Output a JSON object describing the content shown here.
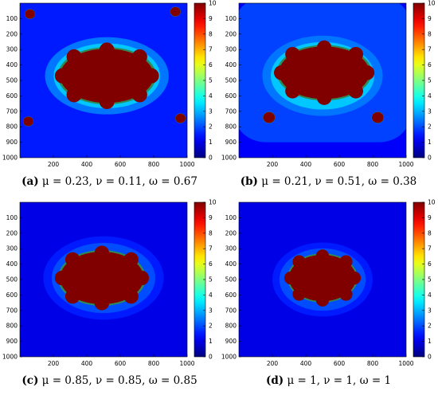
{
  "chart_data": [
    {
      "type": "heatmap",
      "panel_letter": "(a)",
      "caption_text": "μ = 0.23, ν = 0.11, ω = 0.67",
      "x_ticks": [
        "200",
        "400",
        "600",
        "800",
        "1000"
      ],
      "y_ticks": [
        "100",
        "200",
        "300",
        "400",
        "500",
        "600",
        "700",
        "800",
        "900",
        "1000"
      ],
      "xlim": [
        0,
        1000
      ],
      "ylim": [
        0,
        1000
      ],
      "colorbar": {
        "ticks": [
          "0",
          "1",
          "2",
          "3",
          "4",
          "5",
          "6",
          "7",
          "8",
          "9",
          "10"
        ],
        "range": [
          0,
          10
        ]
      },
      "background_value": 1.5,
      "regions": [
        {
          "kind": "halo",
          "value": 3.2,
          "cx": 520,
          "cy": 470,
          "rx": 370,
          "ry": 250
        },
        {
          "kind": "core",
          "value": 10,
          "cx": 520,
          "cy": 470,
          "rx": 280,
          "ry": 175
        },
        {
          "kind": "core",
          "value": 10,
          "cx": 60,
          "cy": 70,
          "rx": 30,
          "ry": 30
        },
        {
          "kind": "core",
          "value": 10,
          "cx": 930,
          "cy": 55,
          "rx": 30,
          "ry": 30
        },
        {
          "kind": "core",
          "value": 10,
          "cx": 50,
          "cy": 765,
          "rx": 30,
          "ry": 30
        },
        {
          "kind": "core",
          "value": 10,
          "cx": 960,
          "cy": 745,
          "rx": 30,
          "ry": 30
        }
      ]
    },
    {
      "type": "heatmap",
      "panel_letter": "(b)",
      "caption_text": "μ = 0.21, ν = 0.51, ω = 0.38",
      "x_ticks": [
        "200",
        "400",
        "600",
        "800",
        "1000"
      ],
      "y_ticks": [
        "100",
        "200",
        "300",
        "400",
        "500",
        "600",
        "700",
        "800",
        "900",
        "1000"
      ],
      "xlim": [
        0,
        1000
      ],
      "ylim": [
        0,
        1000
      ],
      "colorbar": {
        "ticks": [
          "0",
          "1",
          "2",
          "3",
          "4",
          "5",
          "6",
          "7",
          "8",
          "9",
          "10"
        ],
        "range": [
          0,
          10
        ]
      },
      "background_value": 1.2,
      "regions": [
        {
          "kind": "plate",
          "value": 1.9,
          "cx": 500,
          "cy": 430,
          "rx": 520,
          "ry": 470
        },
        {
          "kind": "halo",
          "value": 3.2,
          "cx": 500,
          "cy": 470,
          "rx": 360,
          "ry": 260
        },
        {
          "kind": "core",
          "value": 10,
          "cx": 510,
          "cy": 450,
          "rx": 270,
          "ry": 170
        },
        {
          "kind": "core",
          "value": 10,
          "cx": 180,
          "cy": 740,
          "rx": 35,
          "ry": 35
        },
        {
          "kind": "core",
          "value": 10,
          "cx": 830,
          "cy": 740,
          "rx": 35,
          "ry": 35
        }
      ]
    },
    {
      "type": "heatmap",
      "panel_letter": "(c)",
      "caption_text": "μ = 0.85, ν = 0.85, ω = 0.85",
      "x_ticks": [
        "200",
        "400",
        "600",
        "800",
        "1000"
      ],
      "y_ticks": [
        "100",
        "200",
        "300",
        "400",
        "500",
        "600",
        "700",
        "800",
        "900",
        "1000"
      ],
      "xlim": [
        0,
        1000
      ],
      "ylim": [
        0,
        1000
      ],
      "colorbar": {
        "ticks": [
          "0",
          "1",
          "2",
          "3",
          "4",
          "5",
          "6",
          "7",
          "8",
          "9",
          "10"
        ],
        "range": [
          0,
          10
        ]
      },
      "background_value": 1.0,
      "regions": [
        {
          "kind": "halo",
          "value": 2.0,
          "cx": 500,
          "cy": 490,
          "rx": 360,
          "ry": 270
        },
        {
          "kind": "core",
          "value": 10,
          "cx": 490,
          "cy": 490,
          "rx": 250,
          "ry": 170
        }
      ]
    },
    {
      "type": "heatmap",
      "panel_letter": "(d)",
      "caption_text": "μ = 1, ν = 1, ω = 1",
      "x_ticks": [
        "200",
        "400",
        "600",
        "800",
        "1000"
      ],
      "y_ticks": [
        "100",
        "200",
        "300",
        "400",
        "500",
        "600",
        "700",
        "800",
        "900",
        "1000"
      ],
      "xlim": [
        0,
        1000
      ],
      "ylim": [
        0,
        1000
      ],
      "colorbar": {
        "ticks": [
          "0",
          "1",
          "2",
          "3",
          "4",
          "5",
          "6",
          "7",
          "8",
          "9",
          "10"
        ],
        "range": [
          0,
          10
        ]
      },
      "background_value": 1.0,
      "regions": [
        {
          "kind": "halo",
          "value": 2.0,
          "cx": 500,
          "cy": 500,
          "rx": 300,
          "ry": 240
        },
        {
          "kind": "core",
          "value": 10,
          "cx": 500,
          "cy": 490,
          "rx": 200,
          "ry": 150
        }
      ]
    }
  ]
}
